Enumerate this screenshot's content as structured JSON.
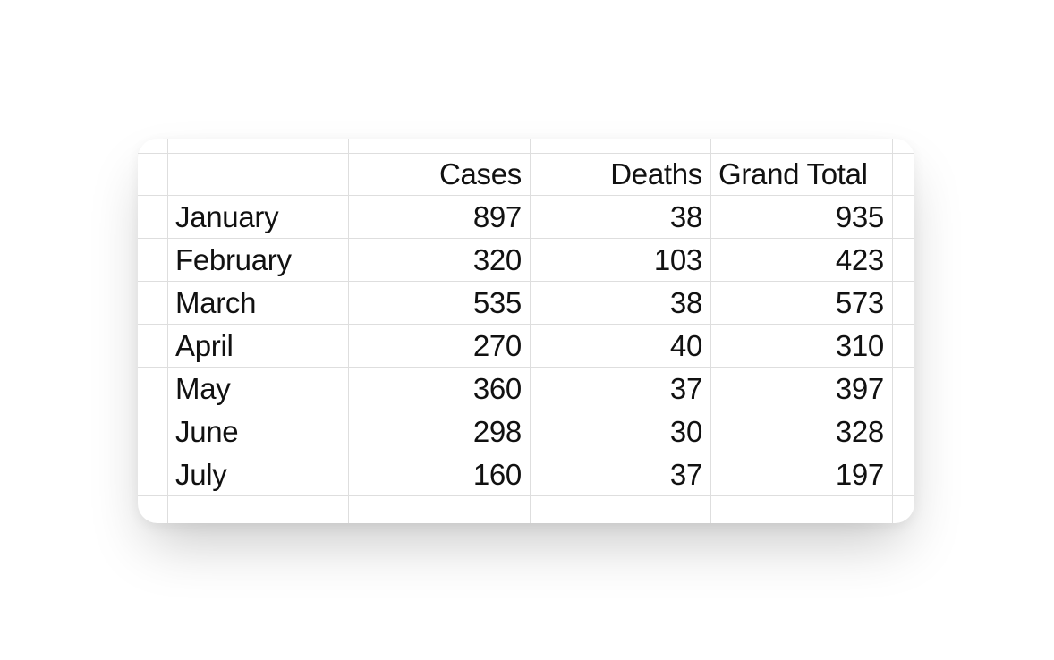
{
  "page": {
    "background": "#ffffff"
  },
  "card": {
    "background": "#ffffff",
    "grid_line_color": "#dedede",
    "text_color": "#111111"
  },
  "table": {
    "column_headers": {
      "month": "",
      "cases": "Cases",
      "deaths": "Deaths",
      "total": "Grand Total"
    },
    "rows": [
      {
        "month": "January",
        "cases": "897",
        "deaths": "38",
        "total": "935"
      },
      {
        "month": "February",
        "cases": "320",
        "deaths": "103",
        "total": "423"
      },
      {
        "month": "March",
        "cases": "535",
        "deaths": "38",
        "total": "573"
      },
      {
        "month": "April",
        "cases": "270",
        "deaths": "40",
        "total": "310"
      },
      {
        "month": "May",
        "cases": "360",
        "deaths": "37",
        "total": "397"
      },
      {
        "month": "June",
        "cases": "298",
        "deaths": "30",
        "total": "328"
      },
      {
        "month": "July",
        "cases": "160",
        "deaths": "37",
        "total": "197"
      }
    ]
  }
}
